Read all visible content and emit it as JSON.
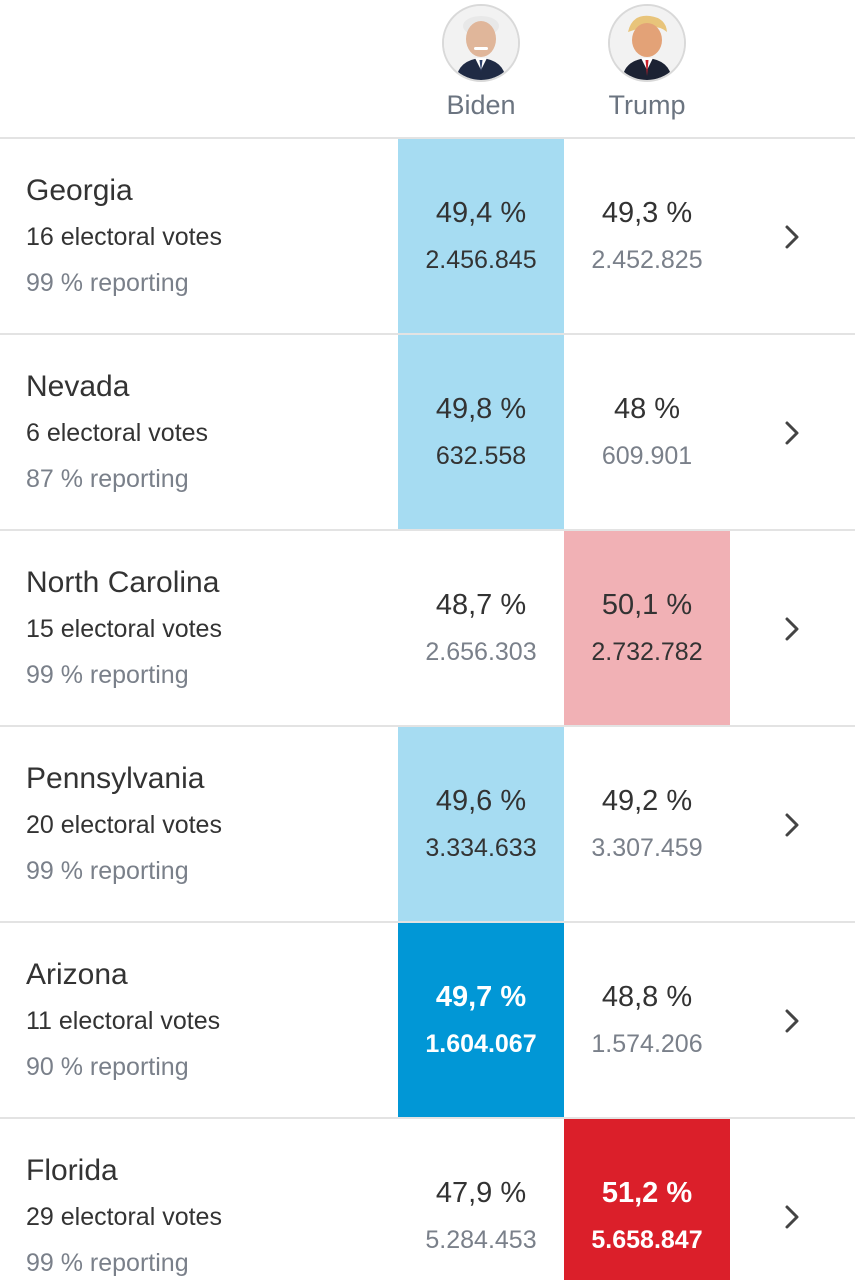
{
  "candidates": {
    "biden": {
      "name": "Biden",
      "icon": "biden-avatar"
    },
    "trump": {
      "name": "Trump",
      "icon": "trump-avatar"
    }
  },
  "colors": {
    "biden_lead": "#a6dcf2",
    "biden_win": "#0197d6",
    "trump_lead": "#f1b1b5",
    "trump_win": "#db1f2a"
  },
  "rows": [
    {
      "state": "Georgia",
      "electoral": "16 electoral votes",
      "reporting": "99 % reporting",
      "biden_pct": "49,4 %",
      "biden_votes": "2.456.845",
      "trump_pct": "49,3 %",
      "trump_votes": "2.452.825"
    },
    {
      "state": "Nevada",
      "electoral": "6 electoral votes",
      "reporting": "87 % reporting",
      "biden_pct": "49,8 %",
      "biden_votes": "632.558",
      "trump_pct": "48 %",
      "trump_votes": "609.901"
    },
    {
      "state": "North Carolina",
      "electoral": "15 electoral votes",
      "reporting": "99 % reporting",
      "biden_pct": "48,7 %",
      "biden_votes": "2.656.303",
      "trump_pct": "50,1 %",
      "trump_votes": "2.732.782"
    },
    {
      "state": "Pennsylvania",
      "electoral": "20 electoral votes",
      "reporting": "99 % reporting",
      "biden_pct": "49,6 %",
      "biden_votes": "3.334.633",
      "trump_pct": "49,2 %",
      "trump_votes": "3.307.459"
    },
    {
      "state": "Arizona",
      "electoral": "11 electoral votes",
      "reporting": "90 % reporting",
      "biden_pct": "49,7 %",
      "biden_votes": "1.604.067",
      "trump_pct": "48,8 %",
      "trump_votes": "1.574.206"
    },
    {
      "state": "Florida",
      "electoral": "29 electoral votes",
      "reporting": "99 % reporting",
      "biden_pct": "47,9 %",
      "biden_votes": "5.284.453",
      "trump_pct": "51,2 %",
      "trump_votes": "5.658.847"
    }
  ]
}
